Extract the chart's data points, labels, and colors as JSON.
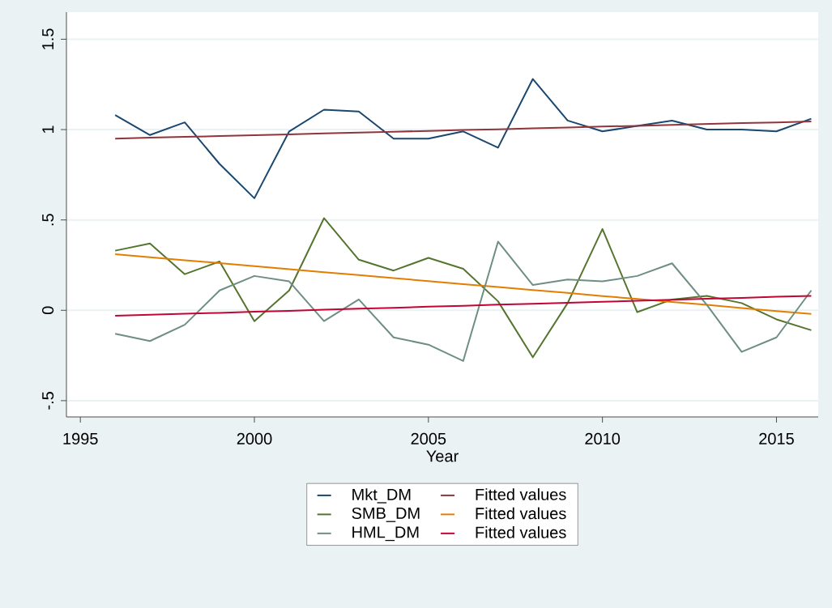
{
  "chart_data": {
    "type": "line",
    "xlabel": "Year",
    "xlim": [
      1994.6,
      2016.2
    ],
    "ylim": [
      -0.59,
      1.65
    ],
    "xticks": [
      1995,
      2000,
      2005,
      2010,
      2015
    ],
    "yticks": [
      {
        "value": -0.5,
        "label": "-.5"
      },
      0,
      {
        "value": 0.5,
        "label": ".5"
      },
      1,
      1.5
    ],
    "grid": "y",
    "legend": "bottom",
    "marker": "none",
    "line_style": "solid",
    "x": [
      1996,
      1997,
      1998,
      1999,
      2000,
      2001,
      2002,
      2003,
      2004,
      2005,
      2006,
      2007,
      2008,
      2009,
      2010,
      2011,
      2012,
      2013,
      2014,
      2015,
      2016
    ],
    "series": [
      {
        "name": "Mkt_DM",
        "color": "#1a476f",
        "values": [
          1.08,
          0.97,
          1.04,
          0.81,
          0.62,
          0.99,
          1.11,
          1.1,
          0.95,
          0.95,
          0.99,
          0.9,
          1.28,
          1.05,
          0.99,
          1.02,
          1.05,
          1.0,
          1.0,
          0.99,
          1.06
        ]
      },
      {
        "name": "Fitted values",
        "color": "#90353b",
        "values": [
          0.95,
          0.955,
          0.96,
          0.964,
          0.969,
          0.974,
          0.979,
          0.983,
          0.988,
          0.993,
          0.998,
          1.002,
          1.007,
          1.012,
          1.017,
          1.021,
          1.026,
          1.031,
          1.036,
          1.04,
          1.045
        ]
      },
      {
        "name": "SMB_DM",
        "color": "#55752f",
        "values": [
          0.33,
          0.37,
          0.2,
          0.27,
          -0.06,
          0.11,
          0.51,
          0.28,
          0.22,
          0.29,
          0.23,
          0.05,
          -0.26,
          0.04,
          0.45,
          -0.01,
          0.06,
          0.08,
          0.04,
          -0.05,
          -0.11
        ]
      },
      {
        "name": "Fitted values",
        "color": "#e37e00",
        "values": [
          0.31,
          0.294,
          0.277,
          0.261,
          0.244,
          0.228,
          0.211,
          0.195,
          0.178,
          0.162,
          0.145,
          0.129,
          0.112,
          0.096,
          0.079,
          0.063,
          0.046,
          0.03,
          0.013,
          -0.004,
          -0.02
        ]
      },
      {
        "name": "HML_DM",
        "color": "#6e8e84",
        "values": [
          -0.13,
          -0.17,
          -0.08,
          0.11,
          0.19,
          0.16,
          -0.06,
          0.06,
          -0.15,
          -0.19,
          -0.28,
          0.38,
          0.14,
          0.17,
          0.16,
          0.19,
          0.26,
          0.03,
          -0.23,
          -0.15,
          0.11
        ]
      },
      {
        "name": "Fitted values",
        "color": "#c10534",
        "values": [
          -0.03,
          -0.025,
          -0.019,
          -0.014,
          -0.008,
          -0.003,
          0.003,
          0.009,
          0.014,
          0.02,
          0.025,
          0.031,
          0.036,
          0.042,
          0.047,
          0.053,
          0.058,
          0.064,
          0.069,
          0.075,
          0.08
        ]
      }
    ]
  }
}
